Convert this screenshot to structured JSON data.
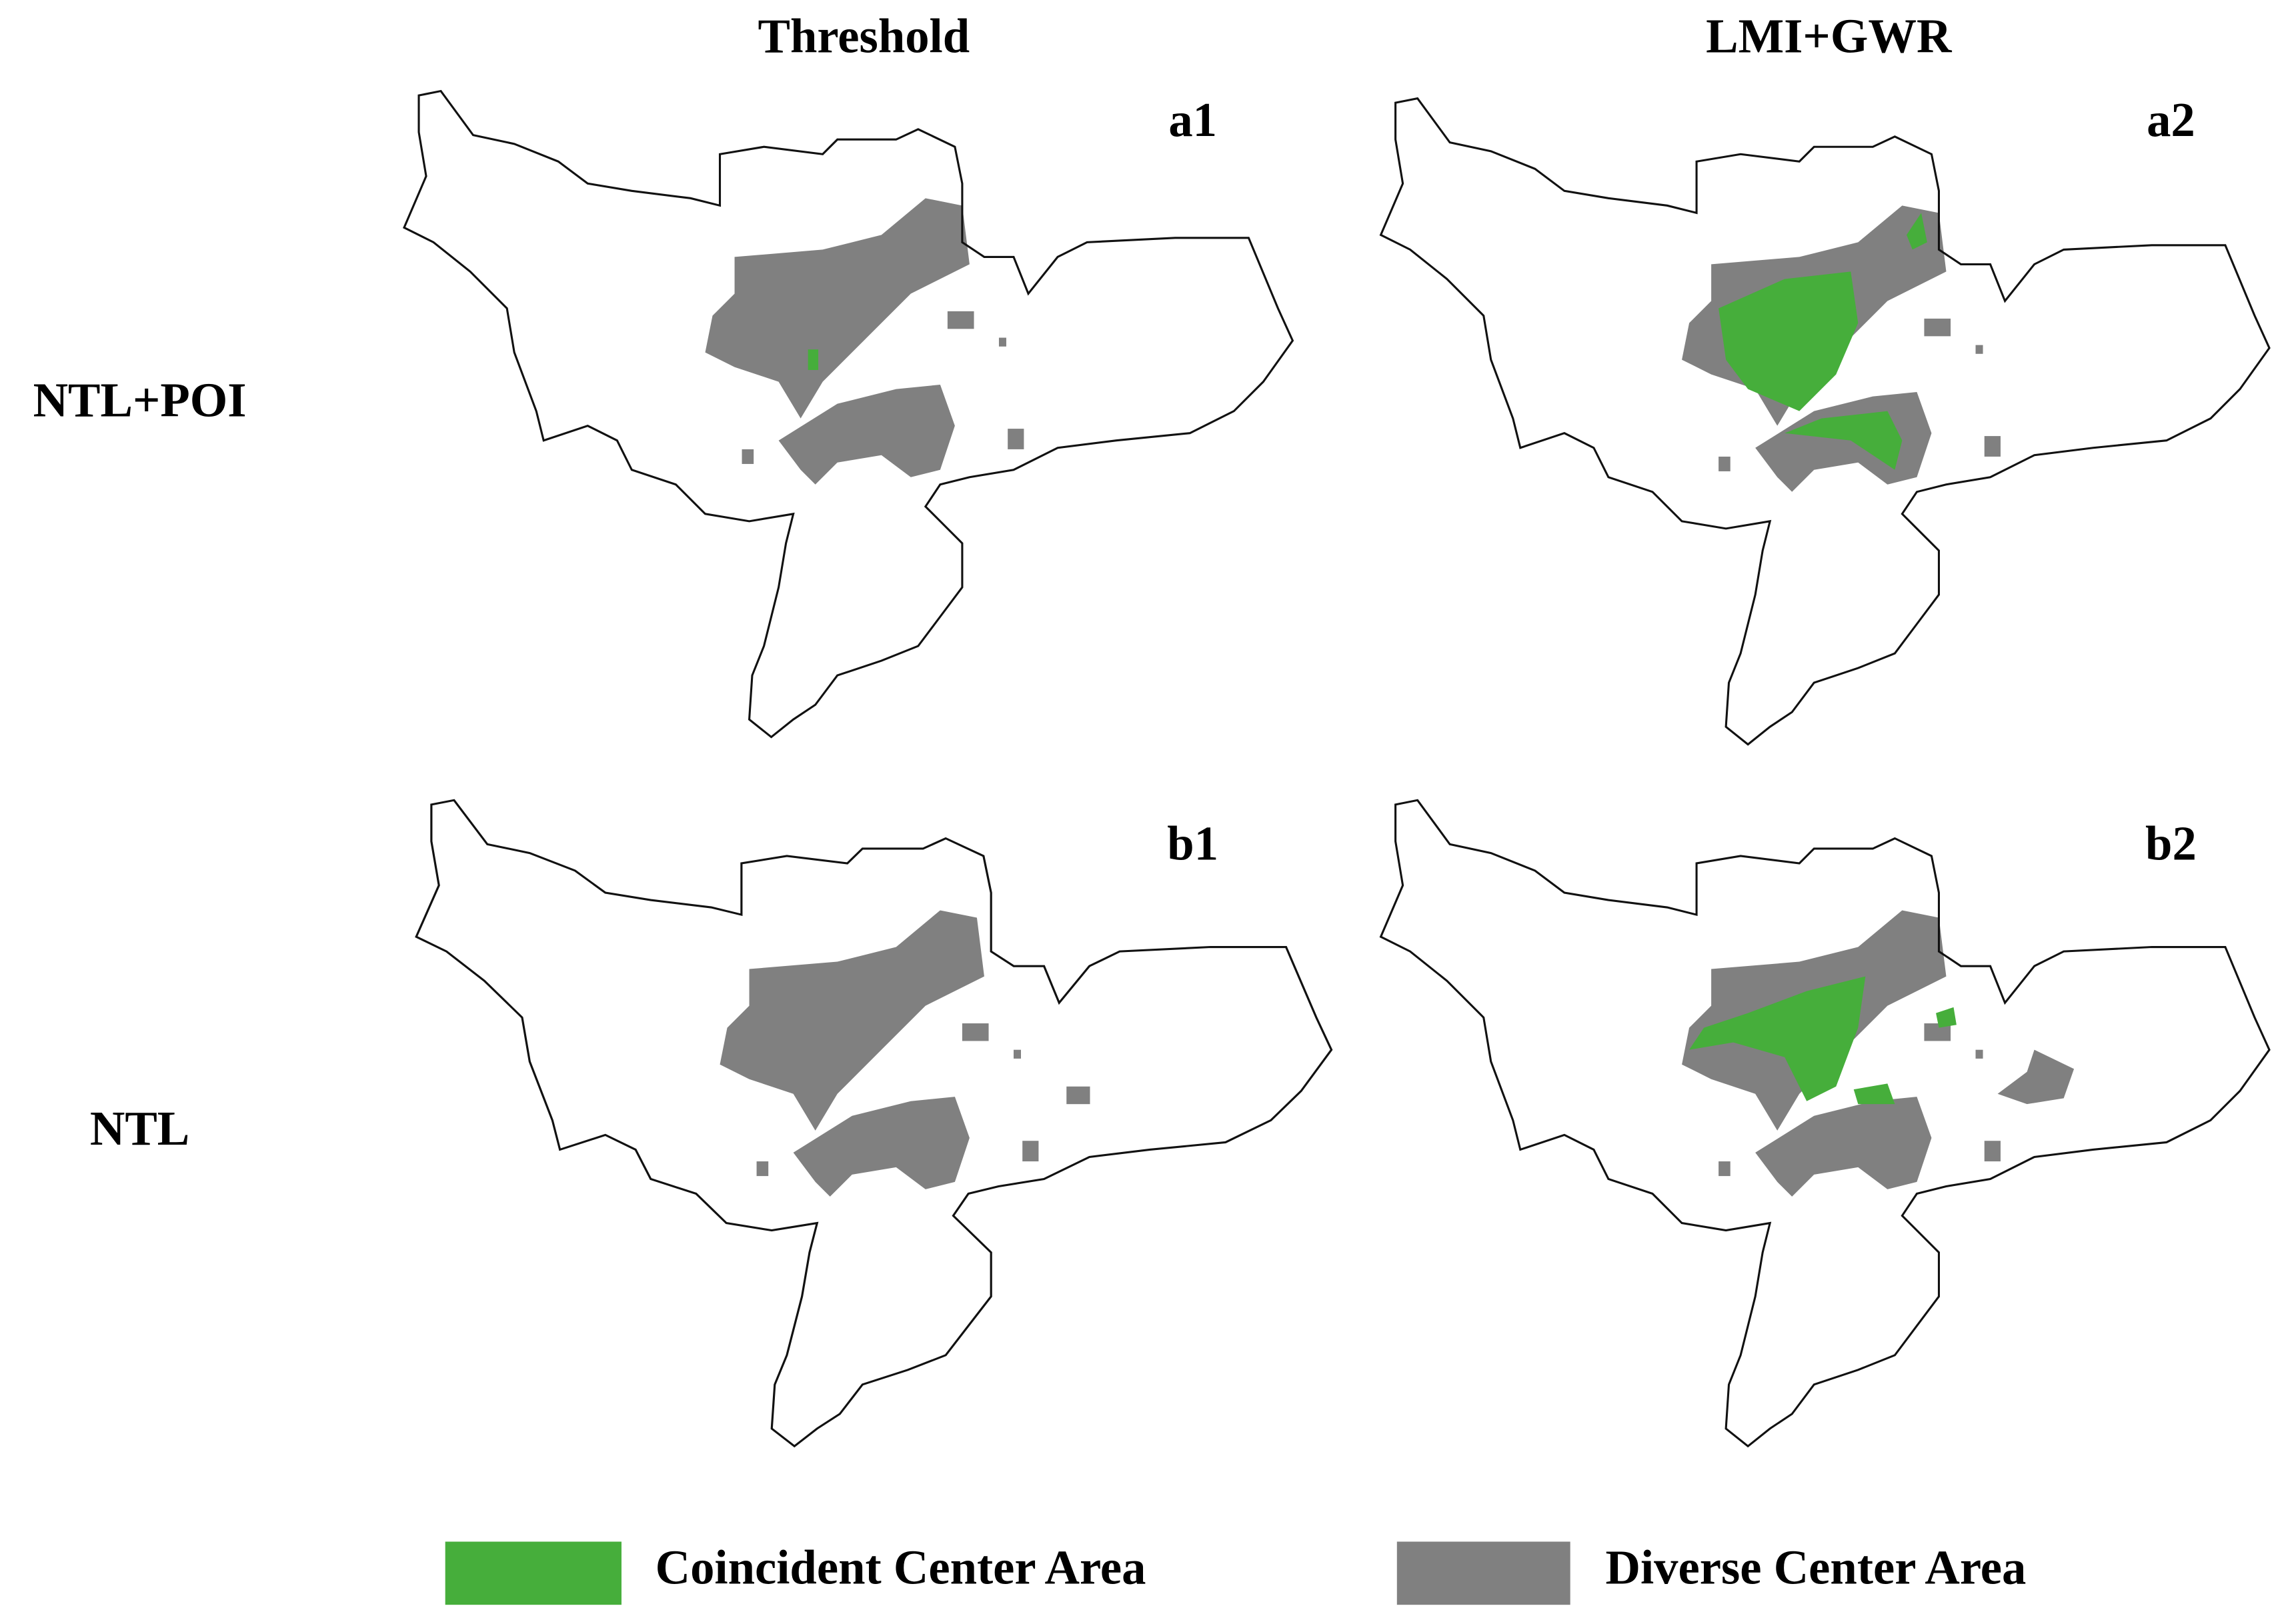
{
  "column_headers": [
    "Threshold",
    "LMI+GWR"
  ],
  "row_labels": [
    "NTL+POI",
    "NTL"
  ],
  "panels": [
    {
      "label": "a1"
    },
    {
      "label": "a2"
    },
    {
      "label": "b1"
    },
    {
      "label": "b2"
    }
  ],
  "legend": [
    {
      "label": "Coincident Center Area",
      "color": "#46ae3b"
    },
    {
      "label": "Diverse Center Area",
      "color": "#808080"
    }
  ]
}
